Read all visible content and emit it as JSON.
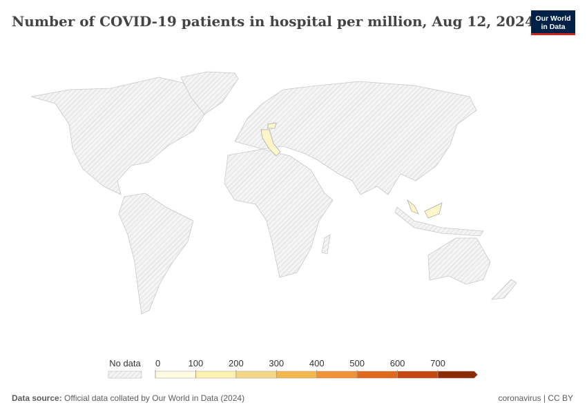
{
  "header": {
    "title": "Number of COVID-19 patients in hospital per million, Aug 12, 2024",
    "logo": [
      "Our World",
      "in Data"
    ]
  },
  "legend": {
    "no_data_label": "No data",
    "ticks": [
      0,
      100,
      200,
      300,
      400,
      500,
      600,
      700
    ],
    "colors": [
      "#fffbe0",
      "#fdf0b0",
      "#f6d788",
      "#f3b84d",
      "#f09336",
      "#e06a1c",
      "#c4480f",
      "#8c2d04"
    ]
  },
  "footer": {
    "source_label": "Data source:",
    "source": "Official data collated by Our World in Data (2024)",
    "license": "coronavirus | CC BY"
  }
}
